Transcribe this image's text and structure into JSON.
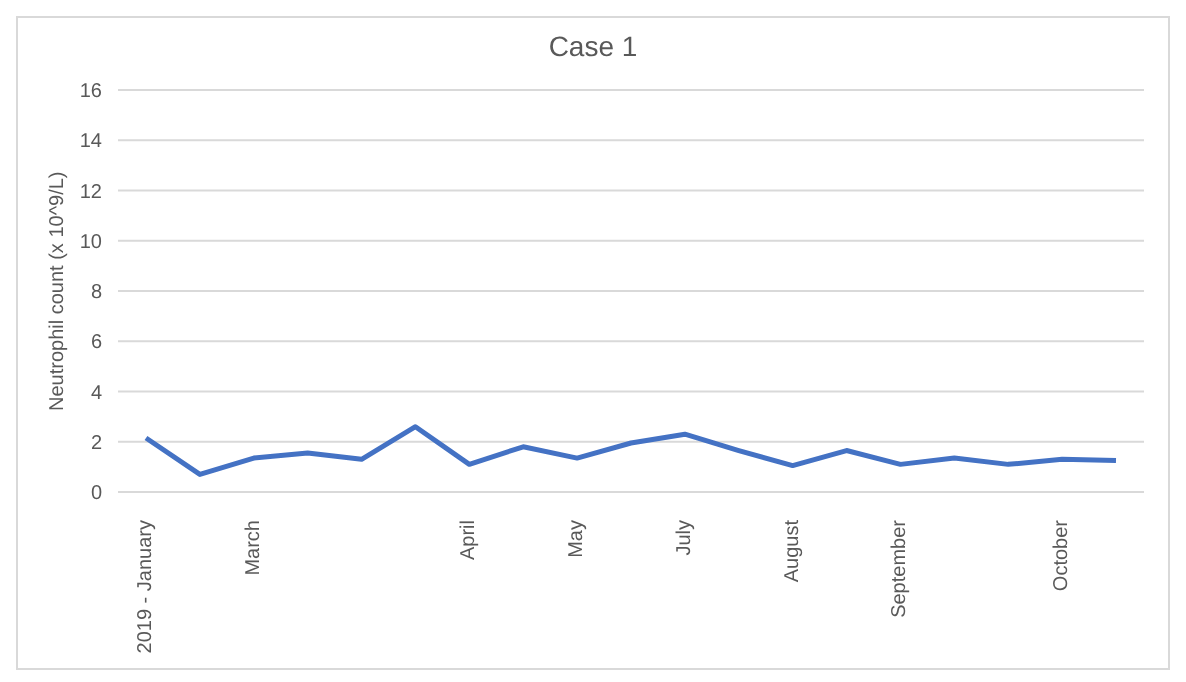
{
  "chart_data": {
    "type": "line",
    "title": "Case 1",
    "ylabel": "Neutrophil count (x 10^9/L)",
    "categories": [
      "2019 - January",
      null,
      "March",
      null,
      null,
      null,
      "April",
      null,
      "May",
      null,
      "July",
      null,
      "August",
      null,
      "September",
      null,
      null,
      "October",
      null
    ],
    "series": [
      {
        "color": "#4472c4",
        "values": [
          2.15,
          0.7,
          1.35,
          1.55,
          1.3,
          2.6,
          1.1,
          1.8,
          1.35,
          1.95,
          2.3,
          1.65,
          1.05,
          1.65,
          1.1,
          1.35,
          1.1,
          1.3,
          1.25
        ]
      }
    ],
    "ylim": [
      0,
      16
    ],
    "yticks": [
      0,
      2,
      4,
      6,
      8,
      10,
      12,
      14,
      16
    ],
    "grid": "y",
    "legend": false,
    "marker": "none",
    "line_style": "solid"
  }
}
